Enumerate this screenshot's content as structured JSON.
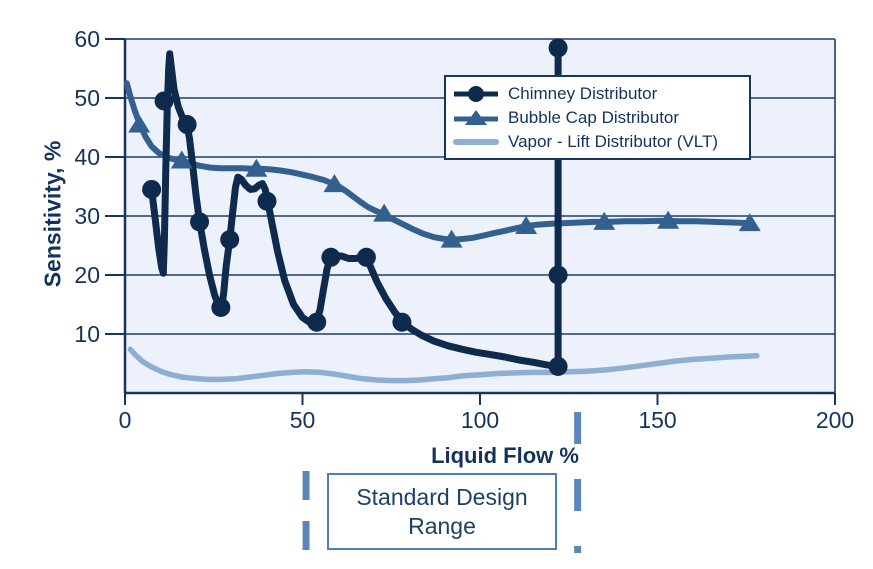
{
  "figure": {
    "y_axis_title": "Sensitivity, %",
    "x_axis_title": "Liquid Flow %",
    "text_color": "#14335c"
  },
  "legend": {
    "items": [
      {
        "label": "Chimney Distributor",
        "marker": "circle",
        "color": "#0e2a4c"
      },
      {
        "label": "Bubble Cap Distributor",
        "marker": "triangle",
        "color": "#33608f"
      },
      {
        "label": "Vapor - Lift Distributor (VLT)",
        "marker": "line",
        "color": "#8fafd2"
      }
    ]
  },
  "annotation": {
    "line1": "Standard Design",
    "line2": "Range",
    "border_color": "#4f7db8",
    "dash_color": "#5b86bc",
    "x_start": 51,
    "x_end": 127.5
  },
  "chart_data": {
    "type": "line",
    "title": "",
    "xlabel": "Liquid Flow %",
    "ylabel": "Sensitivity, %",
    "xlim": [
      0,
      200
    ],
    "ylim": [
      0,
      60
    ],
    "x_ticks": [
      0,
      50,
      100,
      150,
      200
    ],
    "y_ticks": [
      10,
      20,
      30,
      40,
      50,
      60
    ],
    "grid": "horizontal",
    "legend_position": "top-right-inset",
    "plot_bg": "#ecf1fb",
    "grid_color": "#1c3f66",
    "axis_color": "#16365f",
    "standard_design_range": {
      "label": "Standard Design Range",
      "x_start": 51,
      "x_end": 127.5
    },
    "series": [
      {
        "name": "Chimney Distributor",
        "color": "#0e2a4c",
        "marker": "circle",
        "line_width": 7,
        "marker_points": [
          [
            7.5,
            34.5
          ],
          [
            11,
            49.5
          ],
          [
            17.5,
            45.5
          ],
          [
            21,
            29
          ],
          [
            27,
            14.5
          ],
          [
            29.5,
            26
          ],
          [
            40,
            32.5
          ],
          [
            54,
            12
          ],
          [
            58,
            23
          ],
          [
            68,
            23
          ],
          [
            78,
            12
          ],
          [
            122,
            4.5
          ],
          [
            122,
            20
          ],
          [
            122,
            58.5
          ]
        ],
        "path": [
          [
            7.5,
            34.5
          ],
          [
            8.5,
            29.5
          ],
          [
            9.5,
            24.5
          ],
          [
            10.3,
            21.3
          ],
          [
            10.8,
            20.3
          ],
          [
            11.1,
            26
          ],
          [
            11.5,
            38
          ],
          [
            11.9,
            48
          ],
          [
            12.3,
            55
          ],
          [
            12.6,
            57.5
          ],
          [
            13.1,
            55
          ],
          [
            13.8,
            51.5
          ],
          [
            15,
            48.5
          ],
          [
            16.3,
            46.5
          ],
          [
            17.5,
            45.5
          ],
          [
            18.2,
            43
          ],
          [
            19,
            39
          ],
          [
            20,
            33.5
          ],
          [
            21,
            29
          ],
          [
            22.3,
            24.5
          ],
          [
            23.8,
            20
          ],
          [
            25.3,
            16.5
          ],
          [
            26.5,
            14.7
          ],
          [
            27.2,
            14.3
          ],
          [
            27.8,
            17
          ],
          [
            28.5,
            21.5
          ],
          [
            29.5,
            26
          ],
          [
            30.3,
            30.5
          ],
          [
            31.1,
            34.8
          ],
          [
            31.8,
            36.6
          ],
          [
            32.8,
            36.2
          ],
          [
            34,
            35.2
          ],
          [
            35.3,
            34.5
          ],
          [
            36.5,
            34.6
          ],
          [
            37.7,
            35.2
          ],
          [
            38.7,
            35.5
          ],
          [
            39.5,
            34.5
          ],
          [
            40.2,
            32.5
          ],
          [
            41.5,
            28.5
          ],
          [
            43,
            24
          ],
          [
            45,
            19
          ],
          [
            47.5,
            15
          ],
          [
            50,
            12.8
          ],
          [
            52.2,
            11.9
          ],
          [
            53.8,
            12
          ],
          [
            54.9,
            14
          ],
          [
            55.9,
            17.5
          ],
          [
            56.9,
            21
          ],
          [
            57.9,
            22.9
          ],
          [
            59.2,
            23.3
          ],
          [
            61,
            23.2
          ],
          [
            63,
            22.8
          ],
          [
            65,
            22.8
          ],
          [
            67,
            23.1
          ],
          [
            67.9,
            23
          ],
          [
            69.2,
            21.3
          ],
          [
            71,
            18.8
          ],
          [
            73.5,
            16
          ],
          [
            76,
            13.7
          ],
          [
            78,
            12.2
          ],
          [
            80.5,
            10.9
          ],
          [
            83.5,
            9.8
          ],
          [
            87,
            8.8
          ],
          [
            91,
            8
          ],
          [
            95,
            7.4
          ],
          [
            99,
            6.9
          ],
          [
            103,
            6.5
          ],
          [
            107,
            6.1
          ],
          [
            111,
            5.6
          ],
          [
            115,
            5.2
          ],
          [
            118.5,
            4.8
          ],
          [
            121.5,
            4.5
          ],
          [
            122,
            4.5
          ],
          [
            122,
            20
          ],
          [
            122,
            58.5
          ]
        ]
      },
      {
        "name": "Bubble Cap Distributor",
        "color": "#33608f",
        "marker": "triangle",
        "line_width": 6,
        "marker_points": [
          [
            4,
            45.5
          ],
          [
            16,
            39.4
          ],
          [
            37,
            38
          ],
          [
            59,
            35.4
          ],
          [
            73,
            30.4
          ],
          [
            92,
            26
          ],
          [
            113,
            28.3
          ],
          [
            135,
            29
          ],
          [
            153,
            29.2
          ],
          [
            176,
            28.8
          ]
        ],
        "path": [
          [
            0.5,
            52.5
          ],
          [
            1.5,
            50.3
          ],
          [
            2.8,
            47.8
          ],
          [
            4.2,
            45.5
          ],
          [
            5.8,
            43.4
          ],
          [
            7.5,
            41.8
          ],
          [
            9.5,
            40.7
          ],
          [
            12,
            39.9
          ],
          [
            14.5,
            39.5
          ],
          [
            16,
            39.4
          ],
          [
            18.5,
            38.9
          ],
          [
            21,
            38.5
          ],
          [
            24,
            38.2
          ],
          [
            27,
            38.1
          ],
          [
            30,
            38.1
          ],
          [
            33,
            38.1
          ],
          [
            36,
            38
          ],
          [
            38,
            38
          ],
          [
            41,
            37.9
          ],
          [
            44,
            37.7
          ],
          [
            47,
            37.4
          ],
          [
            50,
            37
          ],
          [
            53,
            36.6
          ],
          [
            56,
            36.1
          ],
          [
            58.5,
            35.5
          ],
          [
            60.5,
            34.9
          ],
          [
            62.5,
            34.1
          ],
          [
            64.5,
            33.2
          ],
          [
            66.5,
            32.3
          ],
          [
            68.5,
            31.5
          ],
          [
            70.5,
            30.9
          ],
          [
            72.5,
            30.4
          ],
          [
            75,
            29.6
          ],
          [
            78,
            28.7
          ],
          [
            81,
            27.8
          ],
          [
            84,
            27
          ],
          [
            87,
            26.4
          ],
          [
            90,
            26.1
          ],
          [
            92.5,
            26
          ],
          [
            95,
            26.1
          ],
          [
            98,
            26.3
          ],
          [
            101,
            26.7
          ],
          [
            104,
            27.1
          ],
          [
            107,
            27.5
          ],
          [
            110,
            27.9
          ],
          [
            113,
            28.3
          ],
          [
            116,
            28.5
          ],
          [
            120,
            28.7
          ],
          [
            124,
            28.8
          ],
          [
            128,
            28.9
          ],
          [
            132,
            29
          ],
          [
            136,
            29
          ],
          [
            141,
            29.1
          ],
          [
            146,
            29.1
          ],
          [
            151,
            29.2
          ],
          [
            156,
            29.1
          ],
          [
            161,
            29.1
          ],
          [
            166,
            29
          ],
          [
            171,
            28.9
          ],
          [
            176,
            28.8
          ]
        ]
      },
      {
        "name": "Vapor - Lift Distributor (VLT)",
        "color": "#8fafd2",
        "marker": "none",
        "line_width": 5.5,
        "marker_points": [],
        "path": [
          [
            1.5,
            7.4
          ],
          [
            3,
            6.4
          ],
          [
            5,
            5.3
          ],
          [
            7.5,
            4.4
          ],
          [
            10,
            3.7
          ],
          [
            13,
            3.1
          ],
          [
            16,
            2.7
          ],
          [
            19,
            2.5
          ],
          [
            23,
            2.3
          ],
          [
            27,
            2.3
          ],
          [
            31,
            2.4
          ],
          [
            35,
            2.7
          ],
          [
            39,
            3
          ],
          [
            43,
            3.3
          ],
          [
            47,
            3.5
          ],
          [
            51,
            3.6
          ],
          [
            55,
            3.5
          ],
          [
            59,
            3.2
          ],
          [
            63,
            2.8
          ],
          [
            67,
            2.4
          ],
          [
            71,
            2.2
          ],
          [
            75,
            2.1
          ],
          [
            79,
            2.1
          ],
          [
            83,
            2.2
          ],
          [
            87,
            2.4
          ],
          [
            91,
            2.6
          ],
          [
            95,
            2.9
          ],
          [
            100,
            3.1
          ],
          [
            105,
            3.3
          ],
          [
            110,
            3.4
          ],
          [
            115,
            3.5
          ],
          [
            120,
            3.5
          ],
          [
            125,
            3.6
          ],
          [
            130,
            3.7
          ],
          [
            135,
            3.9
          ],
          [
            140,
            4.2
          ],
          [
            145,
            4.6
          ],
          [
            150,
            5
          ],
          [
            155,
            5.4
          ],
          [
            160,
            5.7
          ],
          [
            165,
            5.9
          ],
          [
            170,
            6.1
          ],
          [
            174,
            6.2
          ],
          [
            178,
            6.3
          ]
        ]
      }
    ]
  }
}
